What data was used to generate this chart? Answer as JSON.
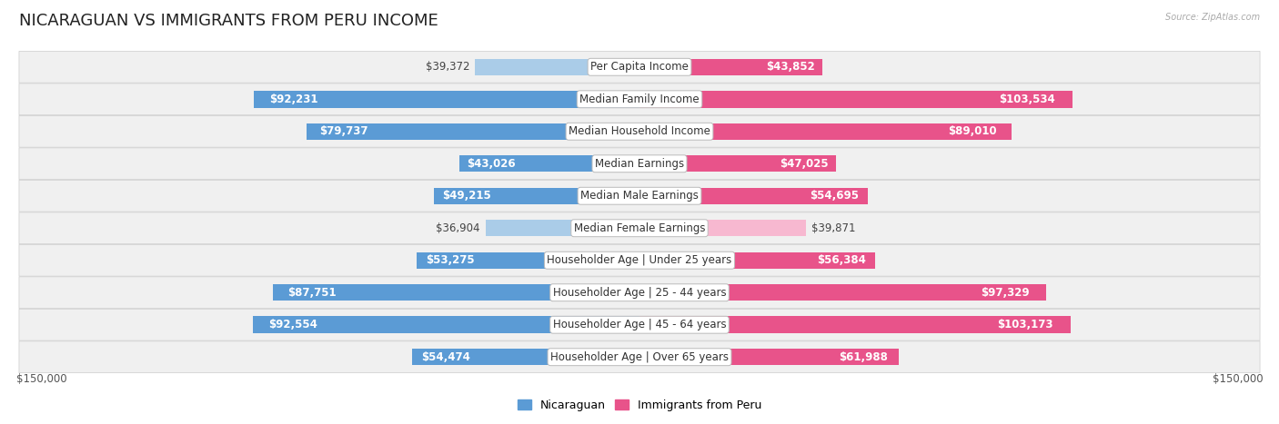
{
  "title": "NICARAGUAN VS IMMIGRANTS FROM PERU INCOME",
  "source": "Source: ZipAtlas.com",
  "categories": [
    "Per Capita Income",
    "Median Family Income",
    "Median Household Income",
    "Median Earnings",
    "Median Male Earnings",
    "Median Female Earnings",
    "Householder Age | Under 25 years",
    "Householder Age | 25 - 44 years",
    "Householder Age | 45 - 64 years",
    "Householder Age | Over 65 years"
  ],
  "nicaraguan_values": [
    39372,
    92231,
    79737,
    43026,
    49215,
    36904,
    53275,
    87751,
    92554,
    54474
  ],
  "peru_values": [
    43852,
    103534,
    89010,
    47025,
    54695,
    39871,
    56384,
    97329,
    103173,
    61988
  ],
  "nicaraguan_labels": [
    "$39,372",
    "$92,231",
    "$79,737",
    "$43,026",
    "$49,215",
    "$36,904",
    "$53,275",
    "$87,751",
    "$92,554",
    "$54,474"
  ],
  "peru_labels": [
    "$43,852",
    "$103,534",
    "$89,010",
    "$47,025",
    "$54,695",
    "$39,871",
    "$56,384",
    "$97,329",
    "$103,173",
    "$61,988"
  ],
  "max_value": 150000,
  "color_nicaraguan_light": "#aacce8",
  "color_nicaraguan_dark": "#5b9bd5",
  "color_peru_light": "#f7b8d0",
  "color_peru_dark": "#e8538a",
  "bg_row": "#f0f0f0",
  "bg_fig": "#ffffff",
  "title_fontsize": 13,
  "label_fontsize": 8.5,
  "axis_label_fontsize": 8.5,
  "legend_fontsize": 9,
  "bar_height": 0.52,
  "x_axis_label_left": "$150,000",
  "x_axis_label_right": "$150,000",
  "legend_label_1": "Nicaraguan",
  "legend_label_2": "Immigrants from Peru",
  "inside_label_threshold": 42000
}
